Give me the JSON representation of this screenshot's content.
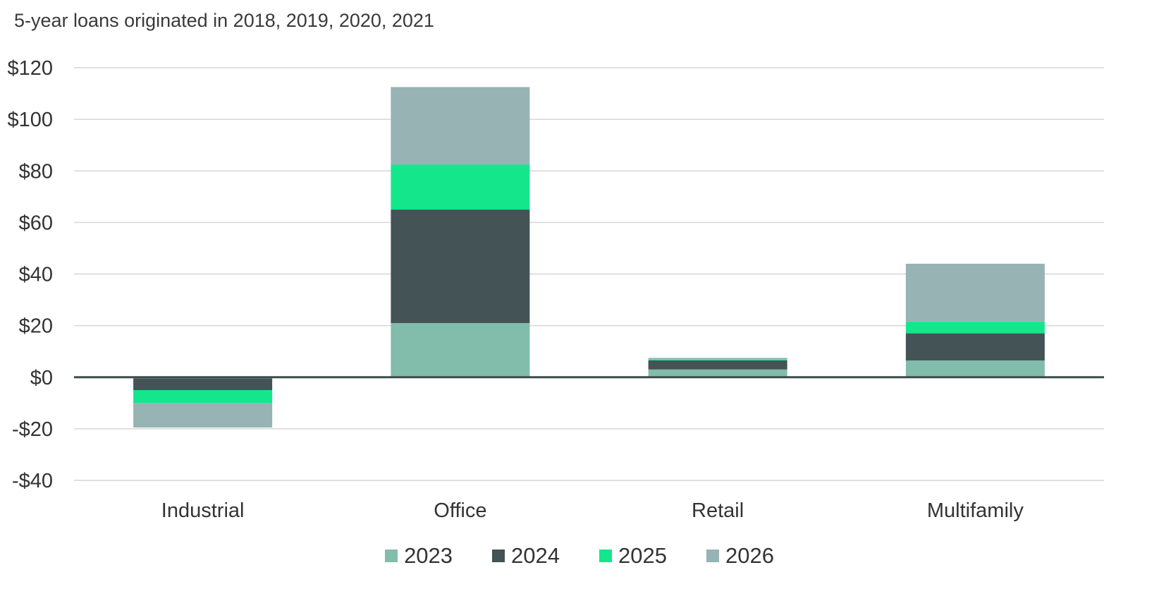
{
  "chart_data": {
    "type": "bar",
    "stacked": true,
    "subtitle": "5-year loans originated in 2018, 2019, 2020, 2021",
    "categories": [
      "Industrial",
      "Office",
      "Retail",
      "Multifamily"
    ],
    "series": [
      {
        "name": "2023",
        "color": "#82bcab",
        "values": [
          -0.5,
          21,
          3,
          6.5
        ]
      },
      {
        "name": "2024",
        "color": "#435356",
        "values": [
          -4.5,
          44,
          3.5,
          10.5
        ]
      },
      {
        "name": "2025",
        "color": "#14e68c",
        "values": [
          -5,
          17.5,
          0.3,
          4.5
        ]
      },
      {
        "name": "2026",
        "color": "#97b3b4",
        "values": [
          -9.5,
          30,
          0.7,
          22.5
        ]
      }
    ],
    "ylim": [
      -40,
      120
    ],
    "yticks": [
      120,
      100,
      80,
      60,
      40,
      20,
      0,
      -20,
      -40
    ],
    "ytick_labels": [
      "$120",
      "$100",
      "$80",
      "$60",
      "$40",
      "$20",
      "$0",
      "-$20",
      "-$40"
    ],
    "xlabel": "",
    "ylabel": "",
    "grid": true,
    "legend_position": "bottom"
  }
}
